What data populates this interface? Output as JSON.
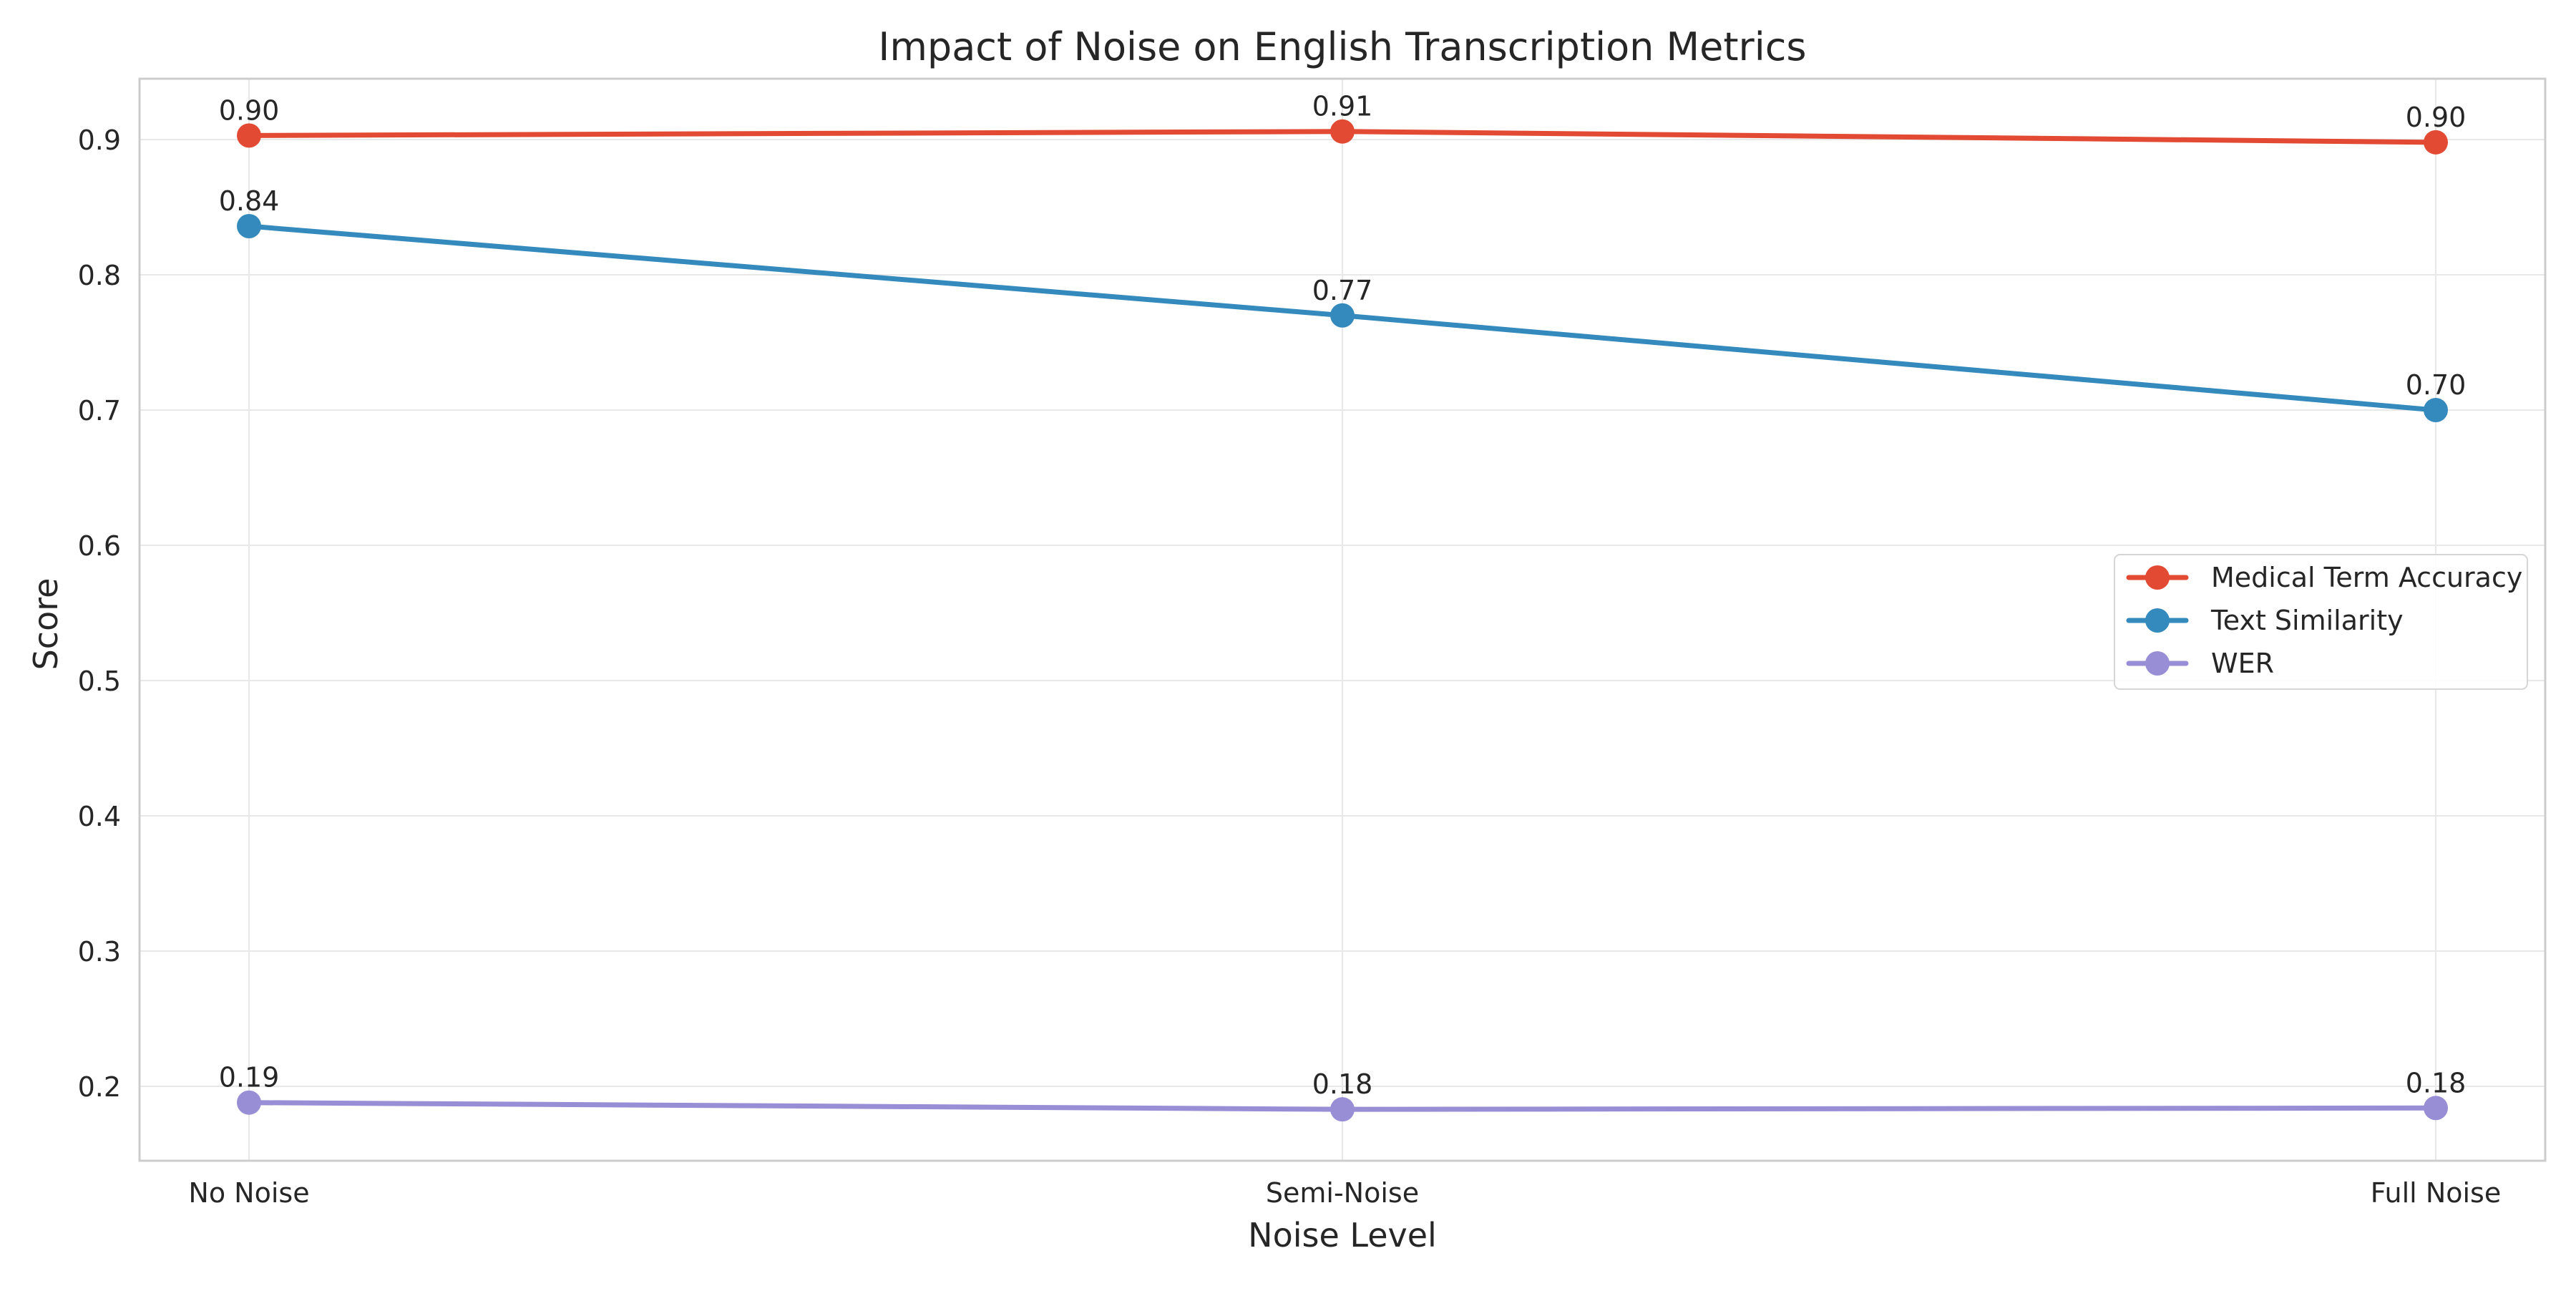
{
  "chart_data": {
    "type": "line",
    "title": "Impact of Noise on English Transcription Metrics",
    "xlabel": "Noise Level",
    "ylabel": "Score",
    "categories": [
      "No Noise",
      "Semi-Noise",
      "Full Noise"
    ],
    "ylim": [
      0.145,
      0.945
    ],
    "yticks": [
      0.2,
      0.3,
      0.4,
      0.5,
      0.6,
      0.7,
      0.8,
      0.9
    ],
    "ytick_labels": [
      "0.2",
      "0.3",
      "0.4",
      "0.5",
      "0.6",
      "0.7",
      "0.8",
      "0.9"
    ],
    "grid": true,
    "legend_position": "center-right",
    "series": [
      {
        "name": "Medical Term Accuracy",
        "color": "#e24a33",
        "values": [
          0.903,
          0.906,
          0.898
        ],
        "labels": [
          "0.90",
          "0.91",
          "0.90"
        ]
      },
      {
        "name": "Text Similarity",
        "color": "#348abd",
        "values": [
          0.836,
          0.77,
          0.7
        ],
        "labels": [
          "0.84",
          "0.77",
          "0.70"
        ]
      },
      {
        "name": "WER",
        "color": "#988ed5",
        "values": [
          0.188,
          0.183,
          0.184
        ],
        "labels": [
          "0.19",
          "0.18",
          "0.18"
        ]
      }
    ]
  }
}
